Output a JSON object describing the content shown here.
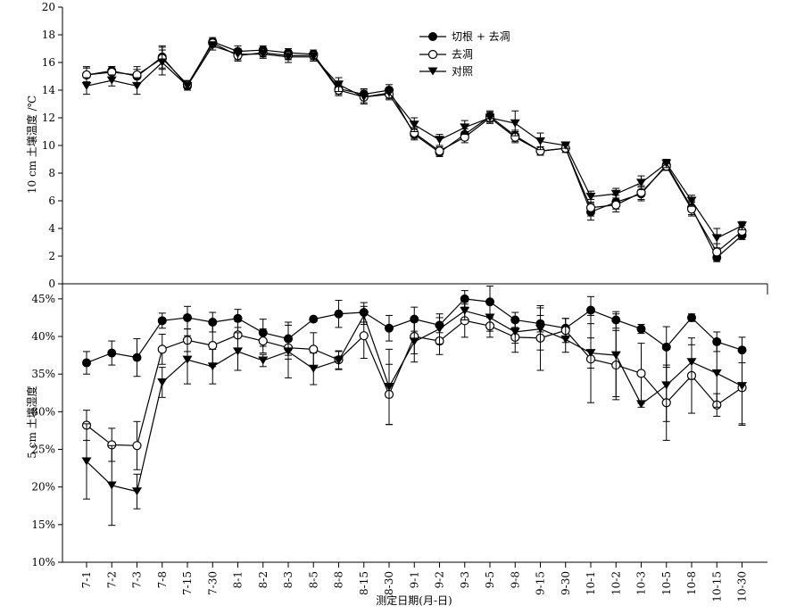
{
  "chart_data": {
    "type": "line",
    "categories": [
      "7-1",
      "7-2",
      "7-3",
      "7-8",
      "7-15",
      "7-30",
      "8-1",
      "8-2",
      "8-3",
      "8-5",
      "8-8",
      "8-15",
      "8-30",
      "9-1",
      "9-2",
      "9-3",
      "9-5",
      "9-8",
      "9-15",
      "9-30",
      "10-1",
      "10-2",
      "10-3",
      "10-5",
      "10-8",
      "10-15",
      "10-30"
    ],
    "xlabel": "测定日期(月-日)",
    "legend": [
      "切根 + 去凋",
      "去凋",
      "对照"
    ],
    "panels": [
      {
        "id": "top",
        "ylabel": "10 cm 土壤温度 /℃",
        "ylim": [
          0,
          20
        ],
        "yticks": [
          0,
          2,
          4,
          6,
          8,
          10,
          12,
          14,
          16,
          18,
          20
        ],
        "ytick_labels": [
          "0",
          "2",
          "4",
          "6",
          "8",
          "10",
          "12",
          "14",
          "16",
          "18",
          "20"
        ],
        "series": [
          {
            "name": "切根 + 去凋",
            "marker": "filled-circle",
            "values": [
              15.1,
              15.4,
              15.0,
              16.4,
              14.3,
              17.5,
              16.8,
              16.9,
              16.7,
              16.6,
              14.1,
              13.7,
              14.0,
              10.8,
              9.5,
              10.8,
              12.1,
              10.7,
              9.6,
              9.8,
              5.2,
              5.9,
              6.5,
              8.6,
              5.5,
              1.9,
              3.5
            ],
            "errors": [
              0.5,
              0.3,
              0.5,
              0.8,
              0.3,
              0.3,
              0.4,
              0.3,
              0.3,
              0.3,
              0.4,
              0.4,
              0.4,
              0.4,
              0.3,
              0.4,
              0.4,
              0.4,
              0.3,
              0.3,
              0.6,
              0.5,
              0.5,
              0.3,
              0.5,
              0.3,
              0.3
            ]
          },
          {
            "name": "去凋",
            "marker": "open-circle",
            "values": [
              15.1,
              15.3,
              15.1,
              16.3,
              14.4,
              17.4,
              16.5,
              16.7,
              16.5,
              16.5,
              14.0,
              13.5,
              13.7,
              10.9,
              9.6,
              10.6,
              12.0,
              10.6,
              9.6,
              9.8,
              5.5,
              5.7,
              6.6,
              8.5,
              5.4,
              2.3,
              3.8
            ],
            "errors": [
              0.6,
              0.4,
              0.6,
              0.8,
              0.3,
              0.3,
              0.4,
              0.3,
              0.3,
              0.3,
              0.4,
              0.4,
              0.4,
              0.4,
              0.3,
              0.4,
              0.4,
              0.4,
              0.3,
              0.3,
              0.6,
              0.5,
              0.5,
              0.3,
              0.5,
              0.6,
              0.4
            ]
          },
          {
            "name": "对照",
            "marker": "filled-triangle-down",
            "values": [
              14.3,
              14.7,
              14.3,
              16.0,
              14.3,
              17.2,
              16.6,
              16.6,
              16.4,
              16.4,
              14.4,
              13.5,
              13.8,
              11.5,
              10.4,
              11.3,
              12.0,
              11.6,
              10.3,
              10.0,
              6.3,
              6.5,
              7.3,
              8.7,
              6.0,
              3.3,
              4.2
            ],
            "errors": [
              0.6,
              0.4,
              0.6,
              0.9,
              0.3,
              0.3,
              0.4,
              0.3,
              0.4,
              0.3,
              0.5,
              0.5,
              0.4,
              0.5,
              0.4,
              0.5,
              0.4,
              0.9,
              0.6,
              0.2,
              0.4,
              0.4,
              0.5,
              0.3,
              0.4,
              0.7,
              0.3
            ]
          }
        ]
      },
      {
        "id": "bottom",
        "ylabel": "5 cm 土壤湿度",
        "ylim": [
          10,
          47
        ],
        "yticks": [
          10,
          15,
          20,
          25,
          30,
          35,
          40,
          45
        ],
        "ytick_labels": [
          "10%",
          "15%",
          "20%",
          "25%",
          "30%",
          "35%",
          "40%",
          "45%"
        ],
        "series": [
          {
            "name": "切根 + 去凋",
            "marker": "filled-circle",
            "values": [
              36.5,
              37.8,
              37.2,
              42.1,
              42.5,
              41.9,
              42.4,
              40.5,
              39.7,
              42.3,
              43.0,
              43.2,
              41.1,
              42.3,
              41.5,
              45.0,
              44.6,
              42.2,
              41.7,
              41.1,
              43.5,
              42.2,
              41.0,
              38.6,
              42.5,
              39.3,
              38.2
            ],
            "errors": [
              1.5,
              1.6,
              2.5,
              1.0,
              1.5,
              1.3,
              1.2,
              1.8,
              2.2,
              0.3,
              1.8,
              1.3,
              1.7,
              1.6,
              1.0,
              1.1,
              2.1,
              1.0,
              1.1,
              1.3,
              1.8,
              1.1,
              0.6,
              2.7,
              0.5,
              1.3,
              1.7
            ]
          },
          {
            "name": "去凋",
            "marker": "open-circle",
            "values": [
              28.2,
              25.6,
              25.5,
              38.3,
              39.5,
              38.8,
              40.2,
              39.4,
              38.5,
              38.3,
              36.9,
              40.1,
              32.3,
              40.0,
              39.4,
              42.1,
              41.4,
              39.9,
              39.8,
              40.8,
              37.0,
              36.2,
              35.1,
              31.2,
              34.8,
              30.9,
              33.2
            ],
            "errors": [
              2.0,
              2.2,
              3.2,
              2.0,
              1.5,
              2.8,
              1.8,
              1.6,
              1.5,
              2.2,
              1.2,
              3.0,
              4.0,
              2.3,
              1.8,
              2.2,
              1.5,
              2.0,
              4.3,
              1.6,
              5.8,
              4.6,
              4.0,
              5.0,
              5.0,
              1.5,
              5.0
            ]
          },
          {
            "name": "对照",
            "marker": "filled-triangle-down",
            "values": [
              23.4,
              20.2,
              19.4,
              33.9,
              36.9,
              36.0,
              38.0,
              36.8,
              38.0,
              35.7,
              36.8,
              42.8,
              33.3,
              39.3,
              41.0,
              43.4,
              42.5,
              40.6,
              41.0,
              39.6,
              37.8,
              37.5,
              31.0,
              33.5,
              36.6,
              35.1,
              33.4
            ],
            "errors": [
              5.0,
              5.3,
              2.3,
              2.0,
              3.2,
              2.3,
              2.5,
              0.8,
              3.5,
              2.1,
              1.2,
              1.2,
              5.0,
              2.7,
              2.0,
              1.2,
              1.8,
              1.5,
              2.8,
              1.7,
              2.0,
              5.5,
              0.4,
              4.8,
              2.3,
              4.5,
              5.0
            ]
          }
        ]
      }
    ]
  }
}
